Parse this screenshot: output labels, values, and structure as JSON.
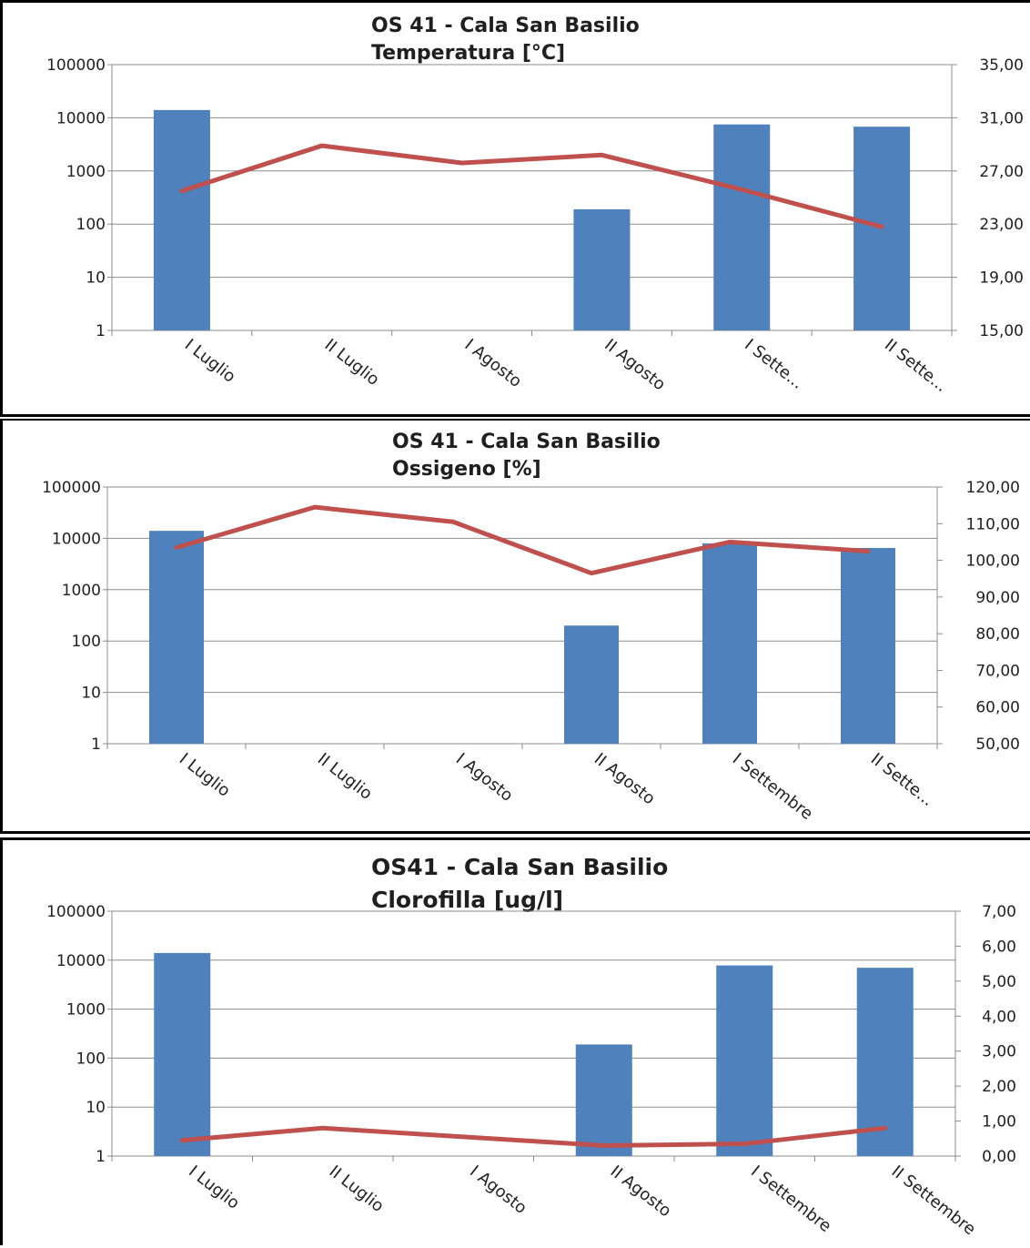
{
  "chart_data": [
    {
      "type": "bar",
      "title": "OS 41 - Cala San Basilio",
      "subtitle": "Temperatura [°C]",
      "categories": [
        "I Luglio",
        "II Luglio",
        "I Agosto",
        "II Agosto",
        "I Sette...",
        "II Sette..."
      ],
      "left_axis": {
        "scale": "log",
        "ticks": [
          "100000",
          "10000",
          "1000",
          "100",
          "10",
          "1"
        ],
        "ylim": [
          1,
          100000
        ]
      },
      "right_axis": {
        "ticks": [
          "35,00",
          "31,00",
          "27,00",
          "23,00",
          "19,00",
          "15,00"
        ],
        "ylim": [
          15,
          35
        ]
      },
      "series": [
        {
          "type": "bar",
          "axis": "left",
          "color": "#4f81bd",
          "values": [
            14000,
            null,
            null,
            190,
            7500,
            6800
          ]
        },
        {
          "type": "line",
          "axis": "right",
          "color": "#c0504d",
          "values": [
            25.5,
            28.9,
            27.6,
            28.2,
            25.6,
            22.8
          ]
        }
      ],
      "grid": true
    },
    {
      "type": "bar",
      "title": "OS 41 - Cala San Basilio",
      "subtitle": "Ossigeno [%]",
      "categories": [
        "I Luglio",
        "II Luglio",
        "I Agosto",
        "II Agosto",
        "I Settembre",
        "II Sette..."
      ],
      "left_axis": {
        "scale": "log",
        "ticks": [
          "100000",
          "10000",
          "1000",
          "100",
          "10",
          "1"
        ],
        "ylim": [
          1,
          100000
        ]
      },
      "right_axis": {
        "ticks": [
          "120,00",
          "110,00",
          "100,00",
          "90,00",
          "80,00",
          "70,00",
          "60,00",
          "50,00"
        ],
        "ylim": [
          50,
          120
        ]
      },
      "series": [
        {
          "type": "bar",
          "axis": "left",
          "color": "#4f81bd",
          "values": [
            14000,
            null,
            null,
            200,
            8000,
            6500
          ]
        },
        {
          "type": "line",
          "axis": "right",
          "color": "#c0504d",
          "values": [
            103.5,
            114.5,
            110.5,
            96.5,
            105,
            102.5
          ]
        }
      ],
      "grid": true
    },
    {
      "type": "bar",
      "title": "OS41 - Cala San Basilio",
      "subtitle": "Clorofilla [ug/l]",
      "categories": [
        "I Luglio",
        "II Luglio",
        "I Agosto",
        "II Agosto",
        "I Settembre",
        "II Settembre"
      ],
      "left_axis": {
        "scale": "log",
        "ticks": [
          "100000",
          "10000",
          "1000",
          "100",
          "10",
          "1"
        ],
        "ylim": [
          1,
          100000
        ]
      },
      "right_axis": {
        "ticks": [
          "7,00",
          "6,00",
          "5,00",
          "4,00",
          "3,00",
          "2,00",
          "1,00",
          "0,00"
        ],
        "ylim": [
          0,
          7
        ]
      },
      "series": [
        {
          "type": "bar",
          "axis": "left",
          "color": "#4f81bd",
          "values": [
            14000,
            null,
            null,
            190,
            7800,
            7000
          ]
        },
        {
          "type": "line",
          "axis": "right",
          "color": "#c0504d",
          "values": [
            0.45,
            0.8,
            0.55,
            0.3,
            0.35,
            0.8
          ]
        }
      ],
      "grid": true
    }
  ]
}
